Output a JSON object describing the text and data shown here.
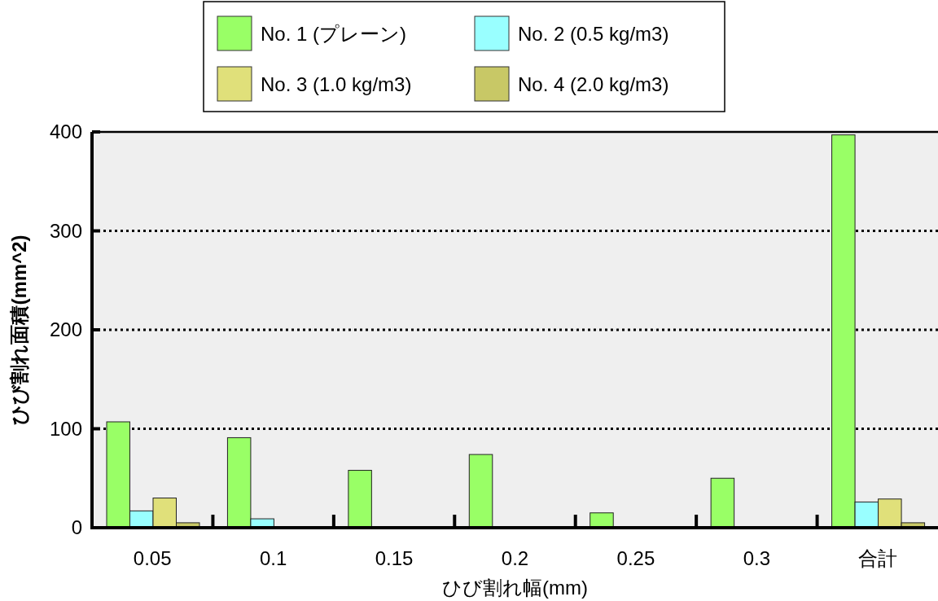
{
  "chart_data": {
    "type": "bar",
    "xlabel": "ひび割れ幅(mm)",
    "ylabel": "ひび割れ面積(mm^2)",
    "categories": [
      "0.05",
      "0.1",
      "0.15",
      "0.2",
      "0.25",
      "0.3",
      "合計"
    ],
    "series": [
      {
        "name": "No. 1 (プレーン)",
        "color": "#99ff66",
        "values": [
          107,
          91,
          58,
          74,
          15,
          50,
          397
        ]
      },
      {
        "name": "No. 2  (0.5 kg/m3)",
        "color": "#99ffff",
        "values": [
          17,
          9,
          0,
          0,
          0,
          0,
          26
        ]
      },
      {
        "name": "No. 3  (1.0 kg/m3)",
        "color": "#e0e07a",
        "values": [
          30,
          0,
          0,
          0,
          0,
          0,
          29
        ]
      },
      {
        "name": "No. 4  (2.0 kg/m3)",
        "color": "#c8c866",
        "values": [
          5,
          0,
          0,
          0,
          0,
          0,
          5
        ]
      }
    ],
    "ylim": [
      0,
      400
    ],
    "yticks": [
      0,
      100,
      200,
      300,
      400
    ],
    "grid": "y",
    "legend": "top"
  }
}
